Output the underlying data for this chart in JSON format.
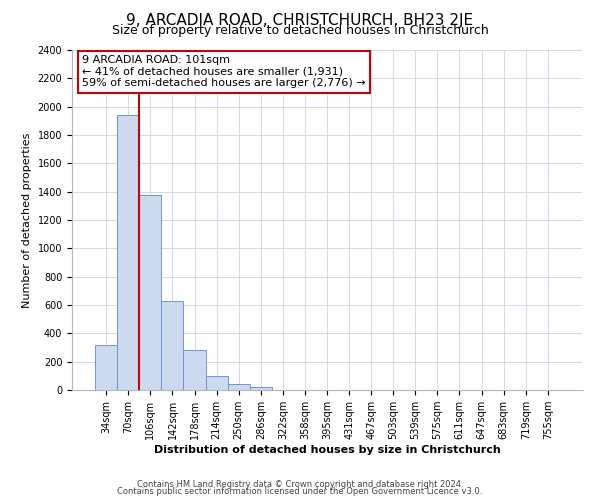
{
  "title": "9, ARCADIA ROAD, CHRISTCHURCH, BH23 2JE",
  "subtitle": "Size of property relative to detached houses in Christchurch",
  "xlabel": "Distribution of detached houses by size in Christchurch",
  "ylabel": "Number of detached properties",
  "bar_labels": [
    "34sqm",
    "70sqm",
    "106sqm",
    "142sqm",
    "178sqm",
    "214sqm",
    "250sqm",
    "286sqm",
    "322sqm",
    "358sqm",
    "395sqm",
    "431sqm",
    "467sqm",
    "503sqm",
    "539sqm",
    "575sqm",
    "611sqm",
    "647sqm",
    "683sqm",
    "719sqm",
    "755sqm"
  ],
  "bar_heights": [
    320,
    1940,
    1380,
    630,
    280,
    100,
    45,
    18,
    0,
    0,
    0,
    0,
    0,
    0,
    0,
    0,
    0,
    0,
    0,
    0,
    0
  ],
  "bar_color": "#ccd9ee",
  "bar_edge_color": "#7096c8",
  "annotation_line1": "9 ARCADIA ROAD: 101sqm",
  "annotation_line2": "← 41% of detached houses are smaller (1,931)",
  "annotation_line3": "59% of semi-detached houses are larger (2,776) →",
  "ylim": [
    0,
    2400
  ],
  "yticks": [
    0,
    200,
    400,
    600,
    800,
    1000,
    1200,
    1400,
    1600,
    1800,
    2000,
    2200,
    2400
  ],
  "footer_line1": "Contains HM Land Registry data © Crown copyright and database right 2024.",
  "footer_line2": "Contains public sector information licensed under the Open Government Licence v3.0.",
  "bg_color": "#ffffff",
  "grid_color": "#c8d4e8",
  "annotation_box_color": "#ffffff",
  "annotation_box_edge": "#cc0000",
  "red_line_color": "#cc0000",
  "title_fontsize": 11,
  "subtitle_fontsize": 9,
  "annotation_fontsize": 8,
  "xlabel_fontsize": 8,
  "ylabel_fontsize": 8,
  "tick_fontsize": 7,
  "footer_fontsize": 6
}
